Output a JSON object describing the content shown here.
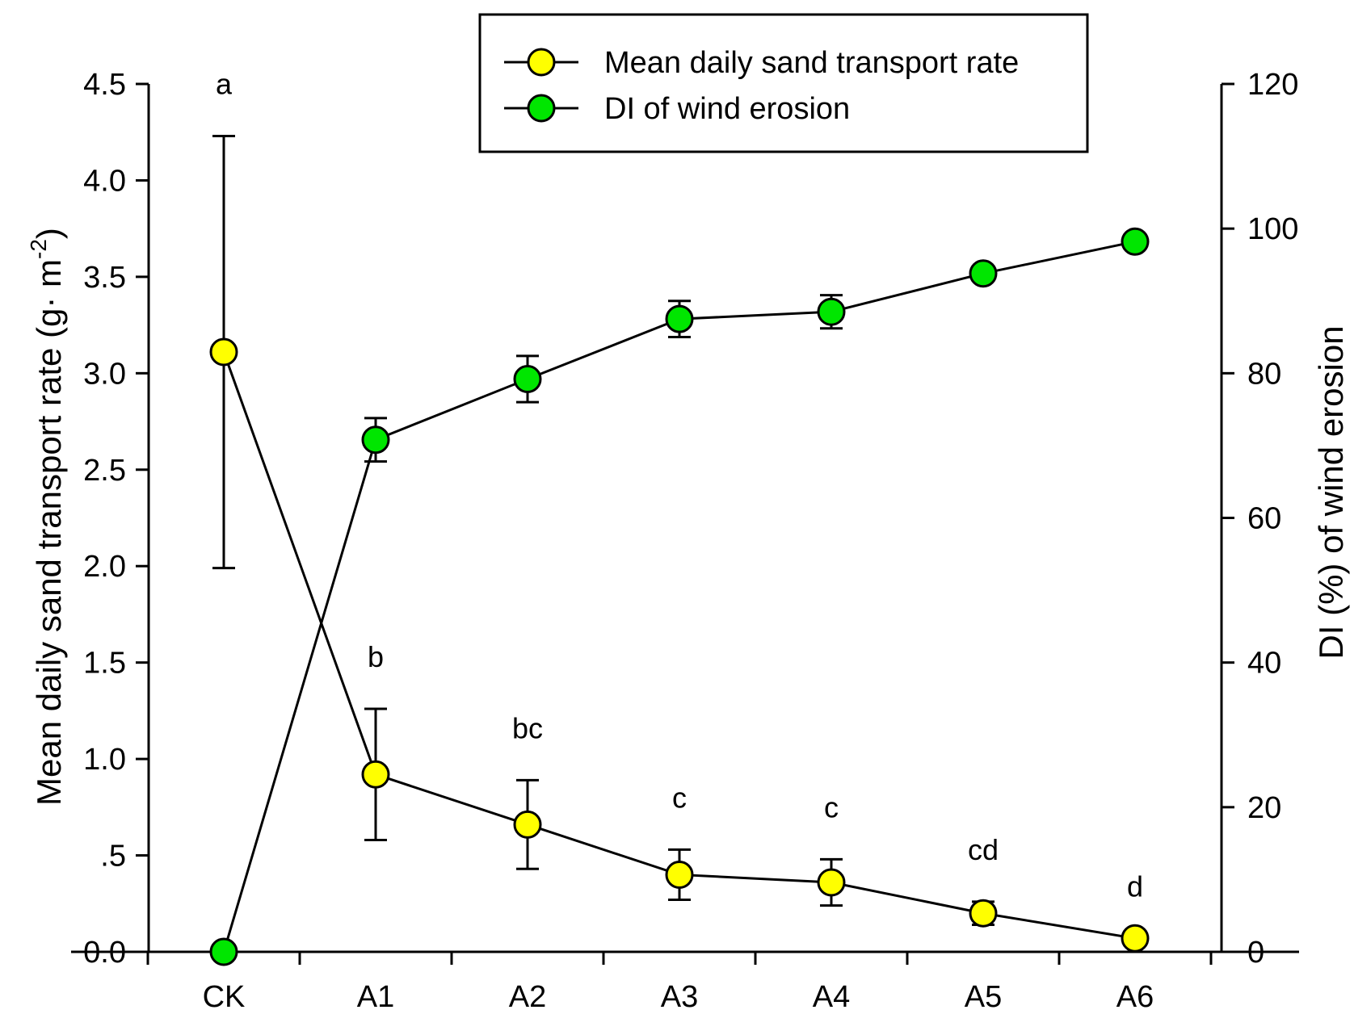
{
  "chart_data": {
    "type": "line",
    "categories": [
      "CK",
      "A1",
      "A2",
      "A3",
      "A4",
      "A5",
      "A6"
    ],
    "series": [
      {
        "name": "Mean daily sand transport rate",
        "axis": "left",
        "color": "#ffff00",
        "values": [
          3.11,
          0.92,
          0.66,
          0.4,
          0.36,
          0.2,
          0.07
        ],
        "error": [
          1.12,
          0.34,
          0.23,
          0.13,
          0.12,
          0.06,
          0.0
        ],
        "letters": [
          "a",
          "b",
          "bc",
          "c",
          "c",
          "cd",
          "d"
        ]
      },
      {
        "name": "DI of wind erosion",
        "axis": "right",
        "color": "#00e600",
        "values": [
          0,
          70.8,
          79.2,
          87.5,
          88.5,
          93.8,
          98.2
        ],
        "error": [
          0,
          3.0,
          3.2,
          2.5,
          2.3,
          0.0,
          0.0
        ]
      }
    ],
    "ylabel_left": "Mean daily sand transport rate (g· m",
    "ylabel_left_sup": "-2",
    "ylabel_left_close": ")",
    "ylabel_right": "DI (%) of wind erosion",
    "ylim_left": [
      0,
      4.5
    ],
    "ylim_right": [
      0,
      120
    ],
    "yticks_left": [
      "0.0",
      ".5",
      "1.0",
      "1.5",
      "2.0",
      "2.5",
      "3.0",
      "3.5",
      "4.0",
      "4.5"
    ],
    "yticks_right": [
      "0",
      "20",
      "40",
      "60",
      "80",
      "100",
      "120"
    ],
    "legend_position": "top-center",
    "grid": false
  }
}
